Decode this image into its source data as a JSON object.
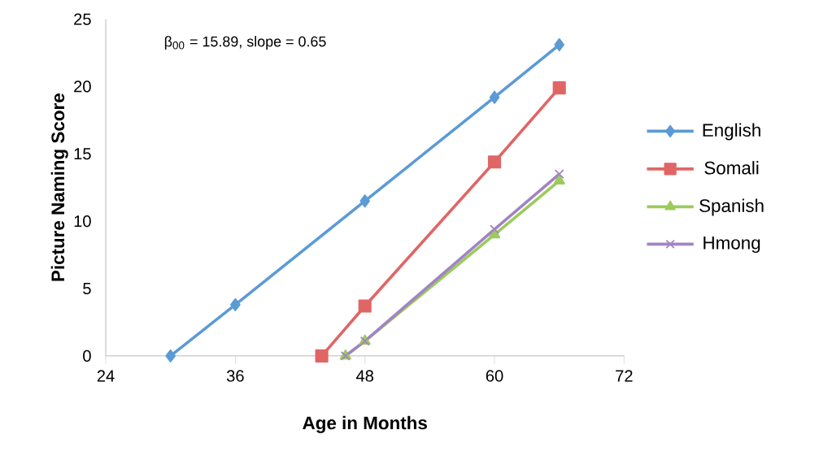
{
  "chart_data": {
    "type": "line",
    "xlabel": "Age in Months",
    "ylabel": "Picture Naming Score",
    "annotations": [
      "β$_{00}$ = 15.89, slope = 0.65"
    ],
    "xlim": [
      24,
      72
    ],
    "xticks": [
      24,
      36,
      48,
      60,
      72
    ],
    "ylim": [
      0,
      25
    ],
    "yticks": [
      0,
      5,
      10,
      15,
      20,
      25
    ],
    "grid": false,
    "legend": "right",
    "line_style": "solid",
    "series": [
      {
        "name": "English",
        "color": "#5b9bd5",
        "marker": "diamond",
        "x": [
          30,
          36,
          48,
          60,
          66
        ],
        "values": [
          0,
          3.8,
          11.5,
          19.2,
          23.1
        ]
      },
      {
        "name": "Somali",
        "color": "#e06666",
        "marker": "square",
        "x": [
          44,
          48,
          60,
          66
        ],
        "values": [
          0,
          3.7,
          14.4,
          19.9
        ]
      },
      {
        "name": "Spanish",
        "color": "#9bcb5c",
        "marker": "triangle",
        "x": [
          46.2,
          48,
          60,
          66
        ],
        "values": [
          0,
          1.1,
          9.0,
          13.0
        ]
      },
      {
        "name": "Hmong",
        "color": "#a283c4",
        "marker": "cross",
        "x": [
          46.2,
          48,
          60,
          66
        ],
        "values": [
          0,
          1.1,
          9.4,
          13.5
        ]
      }
    ]
  }
}
